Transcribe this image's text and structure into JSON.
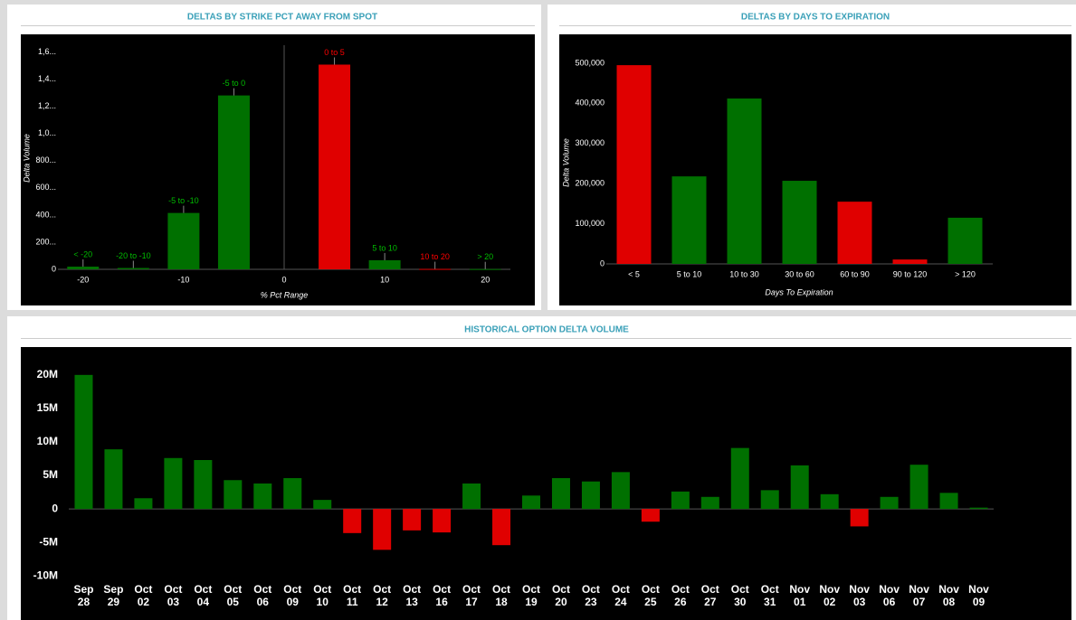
{
  "chart_data": [
    {
      "type": "bar",
      "title": "DELTAS BY STRIKE PCT AWAY FROM SPOT",
      "xlabel": "% Pct Range",
      "ylabel": "Delta Volume",
      "categories": [
        "< -20",
        "-20 to -10",
        "-5 to -10",
        "-5 to 0",
        "0 to 5",
        "5 to 10",
        "10 to 20",
        "> 20"
      ],
      "x": [
        -20,
        -15,
        -10,
        -5,
        5,
        10,
        15,
        20
      ],
      "values": [
        20,
        10,
        415,
        1280,
        1507,
        67,
        3,
        2
      ],
      "colors": [
        "#007000",
        "#007000",
        "#007000",
        "#007000",
        "#e00000",
        "#007000",
        "#e00000",
        "#007000"
      ],
      "xlim": [
        -22.5,
        22.5
      ],
      "xticks": [
        -20,
        -10,
        0,
        10,
        20
      ],
      "ylim": [
        0,
        1650
      ],
      "yticks": [
        0,
        {
          "value": 200,
          "label": "200..."
        },
        {
          "value": 400,
          "label": "400..."
        },
        {
          "value": 600,
          "label": "600..."
        },
        {
          "value": 800,
          "label": "800..."
        },
        {
          "value": 1000,
          "label": "1,0..."
        },
        {
          "value": 1200,
          "label": "1,2..."
        },
        {
          "value": 1400,
          "label": "1,4..."
        },
        {
          "value": 1600,
          "label": "1,6..."
        }
      ]
    },
    {
      "type": "bar",
      "title": "DELTAS BY DAYS TO EXPIRATION",
      "xlabel": "Days To Expiration",
      "ylabel": "Delta Volume",
      "categories": [
        "< 5",
        "5 to 10",
        "10 to 30",
        "30 to 60",
        "60 to 90",
        "90 to 120",
        "> 120"
      ],
      "values": [
        495000,
        218000,
        412000,
        207000,
        155000,
        11000,
        115000
      ],
      "colors": [
        "#e00000",
        "#007000",
        "#007000",
        "#007000",
        "#e00000",
        "#e00000",
        "#007000"
      ],
      "ylim": [
        0,
        520000
      ],
      "yticks": [
        0,
        {
          "value": 100000,
          "label": "100,000"
        },
        {
          "value": 200000,
          "label": "200,000"
        },
        {
          "value": 300000,
          "label": "300,000"
        },
        {
          "value": 400000,
          "label": "400,000"
        },
        {
          "value": 500000,
          "label": "500,000"
        }
      ]
    },
    {
      "type": "bar",
      "title": "HISTORICAL OPTION DELTA VOLUME",
      "categories": [
        "Sep 28",
        "Sep 29",
        "Oct 02",
        "Oct 03",
        "Oct 04",
        "Oct 05",
        "Oct 06",
        "Oct 09",
        "Oct 10",
        "Oct 11",
        "Oct 12",
        "Oct 13",
        "Oct 16",
        "Oct 17",
        "Oct 18",
        "Oct 19",
        "Oct 20",
        "Oct 23",
        "Oct 24",
        "Oct 25",
        "Oct 26",
        "Oct 27",
        "Oct 30",
        "Oct 31",
        "Nov 01",
        "Nov 02",
        "Nov 03",
        "Nov 06",
        "Nov 07",
        "Nov 08",
        "Nov 09"
      ],
      "values": [
        20000000,
        8900000,
        1600000,
        7600000,
        7300000,
        4300000,
        3800000,
        4600000,
        1350000,
        -3600000,
        -6100000,
        -3200000,
        -3500000,
        3800000,
        -5400000,
        2000000,
        4600000,
        4100000,
        5500000,
        -1900000,
        2600000,
        1800000,
        9100000,
        2800000,
        6500000,
        2200000,
        -2600000,
        1800000,
        6600000,
        2400000,
        200000
      ],
      "colors": [
        "#007000",
        "#007000",
        "#007000",
        "#007000",
        "#007000",
        "#007000",
        "#007000",
        "#007000",
        "#007000",
        "#e00000",
        "#e00000",
        "#e00000",
        "#e00000",
        "#007000",
        "#e00000",
        "#007000",
        "#007000",
        "#007000",
        "#007000",
        "#e00000",
        "#007000",
        "#007000",
        "#007000",
        "#007000",
        "#007000",
        "#007000",
        "#e00000",
        "#007000",
        "#007000",
        "#007000",
        "#007000"
      ],
      "ylim": [
        -10500000,
        22000000
      ],
      "yticks": [
        {
          "value": -10000000,
          "label": "-10M"
        },
        {
          "value": -5000000,
          "label": "-5M"
        },
        0,
        {
          "value": 5000000,
          "label": "5M"
        },
        {
          "value": 10000000,
          "label": "10M"
        },
        {
          "value": 15000000,
          "label": "15M"
        },
        {
          "value": 20000000,
          "label": "20M"
        }
      ]
    }
  ]
}
